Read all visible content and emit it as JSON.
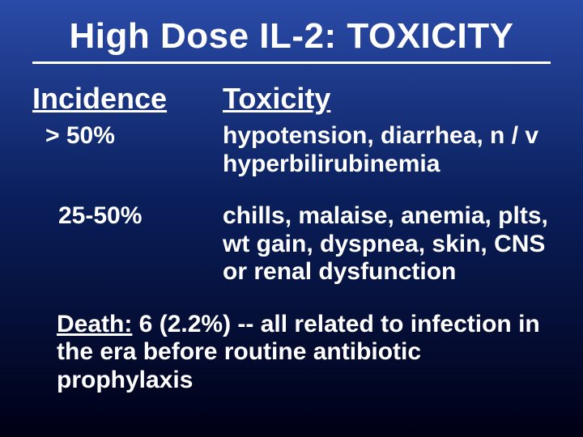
{
  "title": "High Dose IL-2:  TOXICITY",
  "columns": {
    "incidence": "Incidence",
    "toxicity": "Toxicity"
  },
  "rows": [
    {
      "incidence": "> 50%",
      "toxicity": "hypotension, diarrhea, n / v hyperbilirubinemia"
    },
    {
      "incidence": "25-50%",
      "toxicity": "chills, malaise, anemia,  plts, wt  gain, dyspnea, skin, CNS or renal dysfunction"
    }
  ],
  "death": {
    "label": "Death:",
    "text": " 6 (2.2%) -- all related to infection in the era before routine antibiotic prophylaxis"
  },
  "style": {
    "background_gradient": [
      "#2a4ba8",
      "#0a1f5c",
      "#000015"
    ],
    "text_color": "#ffffff",
    "title_fontsize": 44,
    "header_fontsize": 36,
    "body_fontsize": 30,
    "rule_color": "#ffffff",
    "rule_width": 3,
    "font_family": "Arial"
  }
}
